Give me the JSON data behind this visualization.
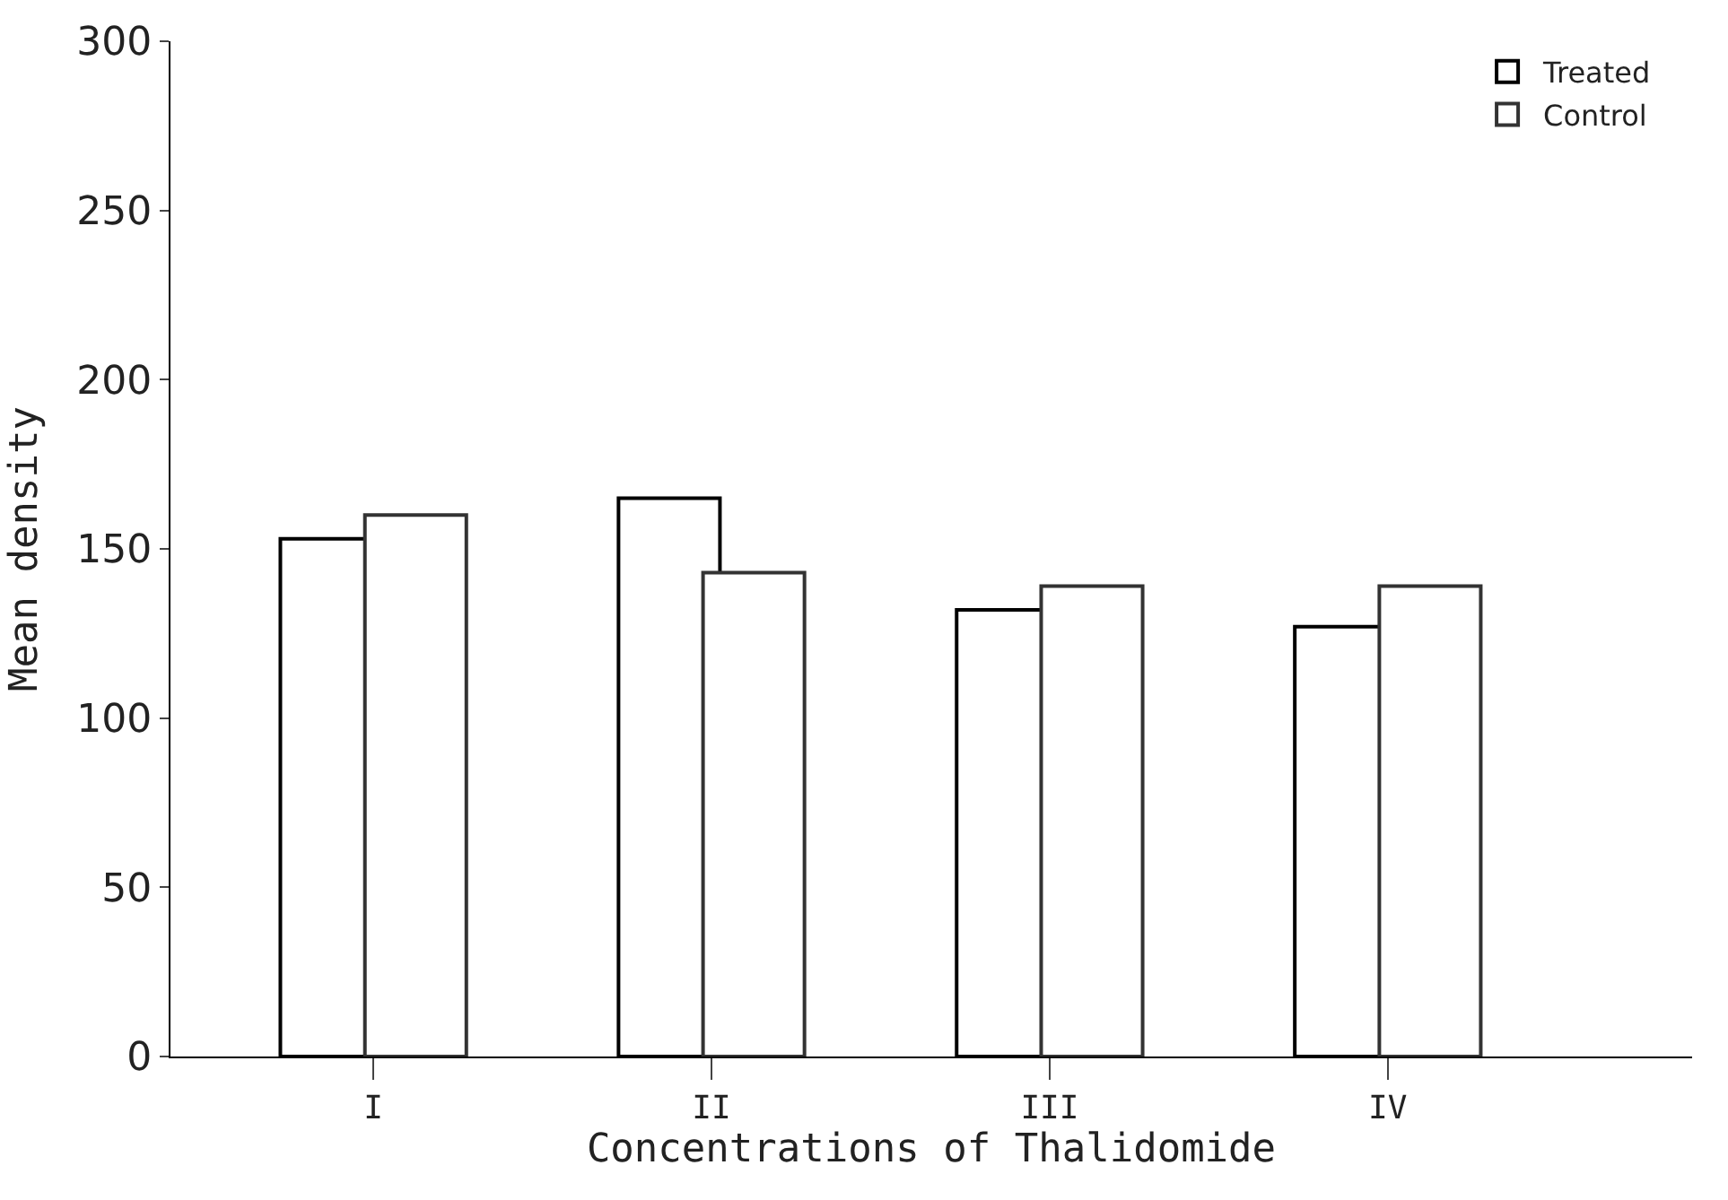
{
  "chart_data": {
    "type": "bar",
    "xlabel": "Concentrations of Thalidomide",
    "ylabel": "Mean density",
    "categories": [
      "I",
      "II",
      "III",
      "IV"
    ],
    "series": [
      {
        "name": "Treated",
        "color": "#000000",
        "values": [
          153,
          165,
          132,
          127
        ]
      },
      {
        "name": "Control",
        "color": "#333333",
        "values": [
          160,
          143,
          139,
          139
        ]
      }
    ],
    "ylim": [
      0,
      300
    ],
    "yticks": [
      0,
      50,
      100,
      150,
      200,
      250,
      300
    ],
    "legend": "top right"
  }
}
